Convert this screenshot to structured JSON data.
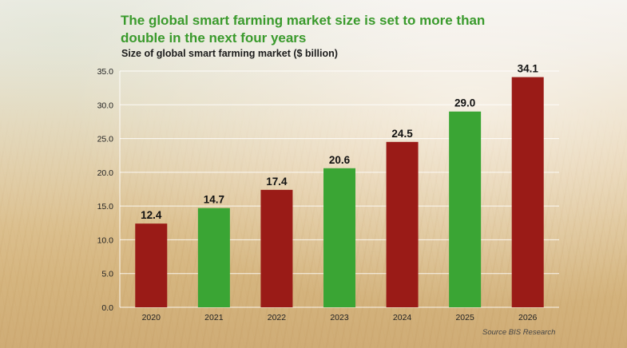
{
  "title": "The global smart farming market size is set to more than double in the next four years",
  "subtitle": "Size of global smart farming market ($ billion)",
  "source": "Source BIS Research",
  "colors": {
    "red": "#9a1b17",
    "green": "#3aa534",
    "title_green": "#3a9a2c"
  },
  "chart_data": {
    "type": "bar",
    "categories": [
      "2020",
      "2021",
      "2022",
      "2023",
      "2024",
      "2025",
      "2026"
    ],
    "values": [
      12.4,
      14.7,
      17.4,
      20.6,
      24.5,
      29.0,
      34.1
    ],
    "value_labels": [
      "12.4",
      "14.7",
      "17.4",
      "20.6",
      "24.5",
      "29.0",
      "34.1"
    ],
    "bar_colors": [
      "red",
      "green",
      "red",
      "green",
      "red",
      "green",
      "red"
    ],
    "ylim": [
      0,
      35
    ],
    "yticks": [
      "0.0",
      "5.0",
      "10.0",
      "15.0",
      "20.0",
      "25.0",
      "30.0",
      "35.0"
    ],
    "grid": true,
    "xlabel": "",
    "ylabel": ""
  }
}
